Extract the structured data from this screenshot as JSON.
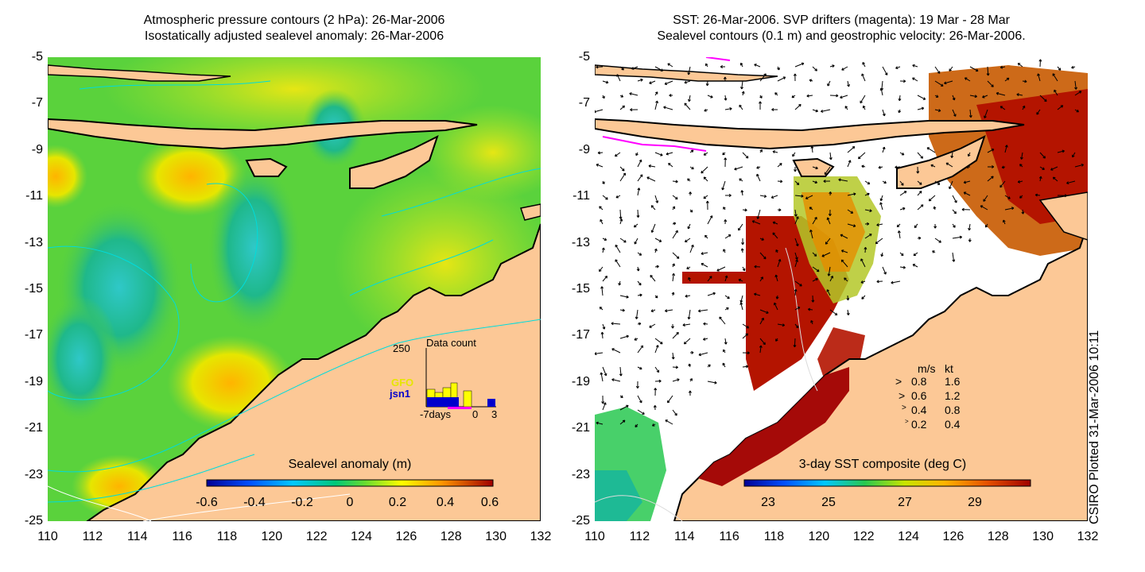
{
  "left_panel": {
    "title_line1": "Atmospheric pressure contours (2 hPa): 26-Mar-2006",
    "title_line2": "Isostatically adjusted sealevel anomaly: 26-Mar-2006",
    "colorbar_title": "Sealevel anomaly (m)",
    "colorbar_ticks": [
      "-0.6",
      "-0.4",
      "-0.2",
      "0",
      "0.2",
      "0.4",
      "0.6"
    ],
    "data_count": {
      "title": "Data count",
      "max_label": "250",
      "satellites": [
        {
          "name": "GFO",
          "color": "#ffff00"
        },
        {
          "name": "jsn1",
          "color": "#0000cc"
        }
      ],
      "x_labels": [
        "-7days",
        "0",
        "3"
      ]
    }
  },
  "right_panel": {
    "title_line1": "SST: 26-Mar-2006. SVP drifters (magenta): 19 Mar - 28 Mar",
    "title_line2": "Sealevel contours (0.1 m) and geostrophic velocity: 26-Mar-2006.",
    "colorbar_title": "3-day SST composite (deg C)",
    "colorbar_ticks": [
      "23",
      "25",
      "27",
      "29"
    ],
    "velocity_legend": {
      "header_ms": "m/s",
      "header_kt": "kt",
      "rows": [
        {
          "ms": "0.8",
          "kt": "1.6"
        },
        {
          "ms": "0.6",
          "kt": "1.2"
        },
        {
          "ms": "0.4",
          "kt": "0.8"
        },
        {
          "ms": "0.2",
          "kt": "0.4"
        }
      ]
    }
  },
  "axes": {
    "y_ticks": [
      "-5",
      "-7",
      "-9",
      "-11",
      "-13",
      "-15",
      "-17",
      "-19",
      "-21",
      "-23",
      "-25"
    ],
    "x_ticks": [
      "110",
      "112",
      "114",
      "116",
      "118",
      "120",
      "122",
      "124",
      "126",
      "128",
      "130",
      "132"
    ],
    "lon_range": [
      110,
      132
    ],
    "lat_range": [
      -25,
      -5
    ]
  },
  "credit": "CSIRO Plotted 31-Mar-2006 10:11",
  "colors": {
    "land": "#fcc896",
    "sst_hot": "#b41400",
    "anomaly_mid": "#5ad23c"
  }
}
